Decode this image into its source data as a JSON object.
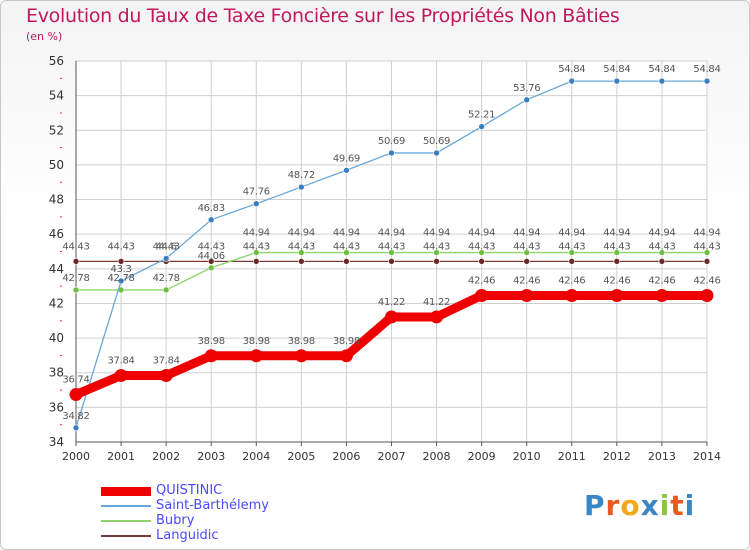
{
  "title": "Evolution du Taux de Taxe Foncière sur les Propriétés Non Bâties",
  "subtitle": "(en %)",
  "logo": {
    "text": "Proxiti",
    "letters": [
      "P",
      "r",
      "o",
      "x",
      "i",
      "t",
      "i"
    ],
    "colors": [
      "#3a87c8",
      "#e85a1e",
      "#f2a81d",
      "#3a87c8",
      "#8cc63e",
      "#e85a1e",
      "#3a87c8"
    ]
  },
  "chart_data": {
    "type": "line",
    "title": "Evolution du Taux de Taxe Foncière sur les Propriétés Non Bâties",
    "ylabel": "(en %)",
    "xlabel": "",
    "ylim": [
      34,
      56
    ],
    "yticks": [
      34,
      36,
      38,
      40,
      42,
      44,
      46,
      48,
      50,
      52,
      54,
      56
    ],
    "categories": [
      "2000",
      "2001",
      "2002",
      "2003",
      "2004",
      "2005",
      "2006",
      "2007",
      "2008",
      "2009",
      "2010",
      "2011",
      "2012",
      "2013",
      "2014"
    ],
    "grid": true,
    "series": [
      {
        "name": "QUISTINIC",
        "color": "#ee0000",
        "thick": true,
        "values": [
          36.74,
          37.84,
          37.84,
          38.98,
          38.98,
          38.98,
          38.98,
          41.22,
          41.22,
          42.46,
          42.46,
          42.46,
          42.46,
          42.46,
          42.46
        ],
        "labels": [
          "36.74",
          "37.84",
          "37.84",
          "38.98",
          "38.98",
          "38.98",
          "38.98",
          "41.22",
          "41.22",
          "42.46",
          "42.46",
          "42.46",
          "42.46",
          "42.46",
          "42.46"
        ]
      },
      {
        "name": "Saint-Barthélemy",
        "color": "#6aa8d8",
        "marker": "#3a7fc0",
        "values": [
          34.82,
          43.3,
          44.6,
          46.83,
          47.76,
          48.72,
          49.69,
          50.69,
          50.69,
          52.21,
          53.76,
          54.84,
          54.84,
          54.84,
          54.84
        ],
        "labels": [
          "34.82",
          "43.3",
          "44.6",
          "46.83",
          "47.76",
          "48.72",
          "49.69",
          "50.69",
          "50.69",
          "52.21",
          "53.76",
          "54.84",
          "54.84",
          "54.84",
          "54.84"
        ]
      },
      {
        "name": "Bubry",
        "color": "#8fd36a",
        "marker": "#6cc040",
        "values": [
          42.78,
          42.78,
          42.78,
          44.06,
          44.94,
          44.94,
          44.94,
          44.94,
          44.94,
          44.94,
          44.94,
          44.94,
          44.94,
          44.94,
          44.94
        ],
        "labels": [
          "42.78",
          "42.78",
          "42.78",
          "44.06",
          "44.94",
          "44.94",
          "44.94",
          "44.94",
          "44.94",
          "44.94",
          "44.94",
          "44.94",
          "44.94",
          "44.94",
          "44.94"
        ]
      },
      {
        "name": "Languidic",
        "color": "#7a3a3a",
        "marker": "#6a2a2a",
        "values": [
          44.43,
          44.43,
          44.43,
          44.43,
          44.43,
          44.43,
          44.43,
          44.43,
          44.43,
          44.43,
          44.43,
          44.43,
          44.43,
          44.43,
          44.43
        ],
        "labels": [
          "44.43",
          "44.43",
          "44.43",
          "44.43",
          "44.43",
          "44.43",
          "44.43",
          "44.43",
          "44.43",
          "44.43",
          "44.43",
          "44.43",
          "44.43",
          "44.43",
          "44.43"
        ]
      }
    ]
  }
}
